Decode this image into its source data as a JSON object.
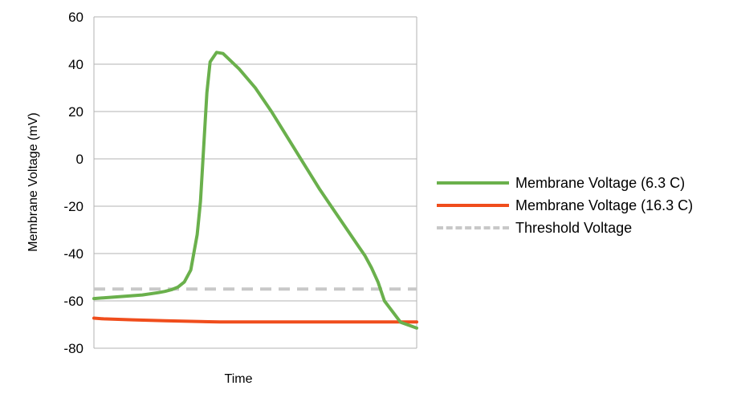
{
  "chart_data": {
    "type": "line",
    "title": "",
    "xlabel": "Time",
    "ylabel": "Membrane Voltage (mV)",
    "ylim": [
      -80,
      60
    ],
    "yticks": [
      "60",
      "40",
      "20",
      "0",
      "-20",
      "-40",
      "-60",
      "-80"
    ],
    "grid": "horizontal",
    "legend_position": "right",
    "series": [
      {
        "name": "Membrane Voltage (6.3 C)",
        "color": "#6ab04c",
        "style": "solid",
        "x": [
          0,
          5,
          10,
          15,
          20,
          22,
          24,
          26,
          28,
          30,
          32,
          33,
          34,
          35,
          36,
          38,
          40,
          45,
          50,
          55,
          60,
          65,
          70,
          75,
          78,
          80,
          82,
          84,
          86,
          88,
          90,
          95,
          100
        ],
        "y": [
          -59,
          -58.5,
          -58,
          -57.5,
          -56.5,
          -56,
          -55.3,
          -54.2,
          -52,
          -47,
          -32,
          -18,
          5,
          28,
          41,
          45,
          44.5,
          38,
          30,
          20,
          9,
          -2,
          -13,
          -23,
          -29,
          -33,
          -37,
          -41,
          -46,
          -52,
          -60,
          -69,
          -71.5
        ]
      },
      {
        "name": "Membrane Voltage (16.3 C)",
        "color": "#f04d1c",
        "style": "solid",
        "x": [
          0,
          3,
          12,
          22,
          39,
          100
        ],
        "y": [
          -67.3,
          -67.6,
          -68,
          -68.4,
          -68.9,
          -68.9
        ]
      },
      {
        "name": "Threshold Voltage",
        "color": "#c8c8c8",
        "style": "dashed",
        "x": [
          0,
          100
        ],
        "y": [
          -55,
          -55
        ]
      }
    ]
  }
}
